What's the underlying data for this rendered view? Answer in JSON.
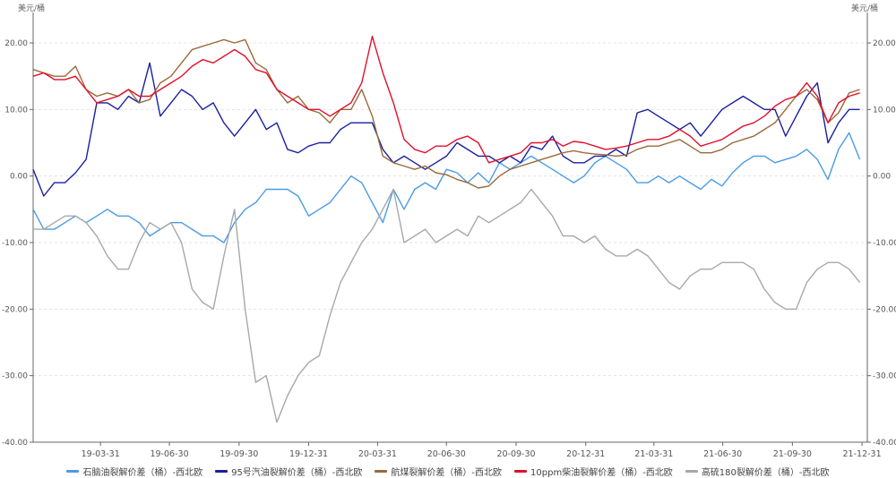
{
  "chart_data": {
    "type": "line",
    "title": "",
    "y_unit_left": "美元/桶",
    "y_unit_right": "美元/桶",
    "ylim": [
      -40,
      20
    ],
    "y_ticks": [
      20,
      10,
      0,
      -10,
      -20,
      -30,
      -40
    ],
    "y_tick_labels": [
      "20.00",
      "10.00",
      "0.00",
      "-10.00",
      "-20.00",
      "-30.00",
      "-40.00"
    ],
    "x_start": "2019-01-01",
    "x_end": "2022-01-07",
    "x_step_days": 14,
    "x_ticks": [
      "2019-03-31",
      "2019-06-30",
      "2019-09-30",
      "2019-12-31",
      "2020-03-31",
      "2020-06-30",
      "2020-09-30",
      "2020-12-31",
      "2021-03-31",
      "2021-06-30",
      "2021-09-30",
      "2021-12-31"
    ],
    "x_tick_labels": [
      "19-03-31",
      "19-06-30",
      "19-09-30",
      "19-12-31",
      "20-03-31",
      "20-06-30",
      "20-09-30",
      "20-12-31",
      "21-03-31",
      "21-06-30",
      "21-09-30",
      "21-12-31"
    ],
    "grid": true,
    "legend_position": "bottom",
    "series": [
      {
        "name": "石脑油裂解价差（桶）-西北欧",
        "color": "#4a9be6",
        "values": [
          -5,
          -8,
          -8,
          -7,
          -6,
          -7,
          -6,
          -5,
          -6,
          -6,
          -7,
          -9,
          -8,
          -7,
          -7,
          -8,
          -9,
          -9,
          -10,
          -7,
          -5,
          -4,
          -2,
          -2,
          -2,
          -3,
          -6,
          -5,
          -4,
          -2,
          0,
          -1,
          -4,
          -7,
          -2,
          -5,
          -2,
          -1,
          -2,
          1,
          0.5,
          -1,
          0.5,
          -1,
          2,
          1,
          2,
          3,
          2,
          1,
          0,
          -1,
          0,
          2,
          3,
          2,
          1,
          -1,
          -1,
          0,
          -1,
          0,
          -1,
          -2,
          -0.5,
          -1.5,
          0.5,
          2,
          3,
          3,
          2,
          2.5,
          3,
          4,
          2.5,
          -0.5,
          4,
          6.5,
          2.5
        ]
      },
      {
        "name": "95号汽油裂解价差（桶）-西北欧",
        "color": "#1a1fa0",
        "values": [
          1,
          -3,
          -1,
          -1,
          0.5,
          2.5,
          11,
          11,
          10,
          12,
          11,
          17,
          9,
          11,
          13,
          12,
          10,
          11,
          8,
          6,
          8,
          10,
          7,
          8,
          4,
          3.5,
          4.5,
          5,
          5,
          7,
          8,
          8,
          8,
          4,
          2,
          3,
          2,
          1,
          2,
          3,
          5,
          4,
          3,
          3,
          2,
          3,
          2,
          4.5,
          4,
          6,
          3,
          2,
          2,
          3,
          3,
          4,
          3,
          9.5,
          10,
          9,
          8,
          7,
          8,
          6,
          8,
          10,
          11,
          12,
          11,
          10,
          10,
          6,
          9,
          12,
          14,
          5,
          8,
          10,
          10
        ]
      },
      {
        "name": "航煤裂解价差（桶）-西北欧",
        "color": "#9a6a3a",
        "values": [
          16,
          15.5,
          15,
          15,
          16.5,
          13,
          12,
          12.5,
          12,
          13,
          11,
          11.5,
          14,
          15,
          17,
          19,
          19.5,
          20,
          20.5,
          20,
          20.5,
          17,
          16,
          13,
          11,
          12,
          10,
          9.5,
          8,
          10,
          10,
          13,
          9,
          3,
          2,
          1.5,
          1,
          1.5,
          0.5,
          0.2,
          -0.5,
          -1,
          -1.8,
          -1.5,
          0,
          1,
          1.5,
          2,
          2.5,
          3,
          3.5,
          3.8,
          3.5,
          3.3,
          3.2,
          3,
          3.2,
          4,
          4.5,
          4.5,
          5,
          5.5,
          4.5,
          3.5,
          3.5,
          4,
          5,
          5.5,
          6,
          7,
          8,
          10,
          12,
          13,
          11.5,
          8,
          9.5,
          12.5,
          13
        ]
      },
      {
        "name": "10ppm柴油裂解价差（桶）-西北欧",
        "color": "#e0102a",
        "values": [
          15,
          15.5,
          14.5,
          14.5,
          15,
          13,
          11,
          11.5,
          12,
          13,
          12,
          12,
          13,
          14,
          15,
          16.5,
          17.5,
          17,
          18,
          19,
          18,
          16,
          15.5,
          13,
          12,
          11,
          10,
          10,
          9,
          10,
          11,
          14,
          21,
          15.5,
          11,
          5.5,
          4,
          3.5,
          4.5,
          4.5,
          5.5,
          6,
          5,
          2,
          2.5,
          3,
          3.5,
          5,
          5,
          5.5,
          4.5,
          5.2,
          5,
          4.5,
          4,
          4.2,
          4.5,
          5,
          5.5,
          5.5,
          6,
          7,
          6,
          4.5,
          5,
          5.5,
          6.5,
          7.5,
          8,
          9,
          10.5,
          11.5,
          12,
          14,
          12,
          8,
          11,
          12,
          12.5
        ]
      },
      {
        "name": "高硫180裂解价差（桶）-西北欧",
        "color": "#a8a8a8",
        "values": [
          -8,
          -8,
          -7,
          -6,
          -6,
          -7,
          -9,
          -12,
          -14,
          -14,
          -10,
          -7,
          -8,
          -7,
          -10,
          -17,
          -19,
          -20,
          -12,
          -5,
          -20,
          -31,
          -30,
          -37,
          -33,
          -30,
          -28,
          -27,
          -21,
          -16,
          -13,
          -10,
          -8,
          -5,
          -2,
          -10,
          -9,
          -8,
          -10,
          -9,
          -8,
          -9,
          -6,
          -7,
          -6,
          -5,
          -4,
          -2,
          -4,
          -6,
          -9,
          -9,
          -10,
          -9,
          -11,
          -12,
          -12,
          -11,
          -12,
          -14,
          -16,
          -17,
          -15,
          -14,
          -14,
          -13,
          -13,
          -13,
          -14,
          -17,
          -19,
          -20,
          -20,
          -16,
          -14,
          -13,
          -13,
          -14,
          -16
        ]
      }
    ]
  }
}
